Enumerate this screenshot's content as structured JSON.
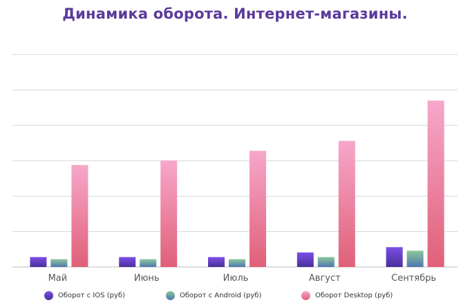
{
  "chart_data": {
    "type": "bar",
    "title": "Динамика оборота. Интернет-магазины.",
    "categories": [
      "Май",
      "Июнь",
      "Июль",
      "Август",
      "Сентябрь"
    ],
    "series": [
      {
        "name": "Оборот с IOS (руб)",
        "values": [
          0.28,
          0.28,
          0.28,
          0.41,
          0.56
        ],
        "color_top": "#7b4fe6",
        "color_bottom": "#4a2f9a"
      },
      {
        "name": "Оборот с Android (руб)",
        "values": [
          0.22,
          0.22,
          0.22,
          0.28,
          0.46
        ],
        "color_top": "#8cc79a",
        "color_bottom": "#4e77b0"
      },
      {
        "name": "Оборот  Desktop (руб)",
        "values": [
          2.88,
          3.01,
          3.28,
          3.56,
          4.7
        ],
        "color_top": "#f7a7cb",
        "color_bottom": "#e06078"
      }
    ],
    "ylim": [
      0,
      6
    ],
    "grid": true,
    "legend_position": "bottom"
  }
}
